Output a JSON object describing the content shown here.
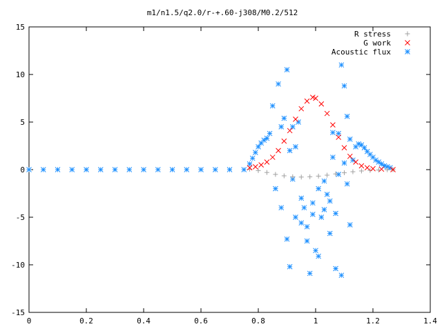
{
  "chart_data": {
    "type": "scatter",
    "title": "m1/n1.5/q2.0/r-+.60-j308/M0.2/512",
    "xlabel": "",
    "ylabel": "",
    "xlim": [
      0,
      1.4
    ],
    "ylim": [
      -15,
      15
    ],
    "x_ticks": [
      "0",
      "0.2",
      "0.4",
      "0.6",
      "0.8",
      "1",
      "1.2",
      "1.4"
    ],
    "y_ticks": [
      "-15",
      "-10",
      "-5",
      "0",
      "5",
      "10",
      "15"
    ],
    "grid": false,
    "legend_position": "top-right",
    "series": [
      {
        "name": "R stress",
        "marker": "plus",
        "color": "#a0a0a0",
        "points": [
          [
            0.77,
            0.05
          ],
          [
            0.8,
            -0.1
          ],
          [
            0.83,
            -0.3
          ],
          [
            0.86,
            -0.5
          ],
          [
            0.89,
            -0.65
          ],
          [
            0.92,
            -0.75
          ],
          [
            0.95,
            -0.78
          ],
          [
            0.98,
            -0.75
          ],
          [
            1.01,
            -0.68
          ],
          [
            1.04,
            -0.58
          ],
          [
            1.07,
            -0.45
          ],
          [
            1.1,
            -0.33
          ],
          [
            1.13,
            -0.22
          ],
          [
            1.16,
            -0.14
          ],
          [
            1.19,
            -0.08
          ],
          [
            1.22,
            -0.04
          ],
          [
            1.25,
            -0.01
          ],
          [
            1.27,
            0
          ]
        ]
      },
      {
        "name": "G work",
        "marker": "cross",
        "color": "#ff0000",
        "points": [
          [
            0.77,
            0.2
          ],
          [
            0.79,
            0.3
          ],
          [
            0.81,
            0.5
          ],
          [
            0.83,
            0.8
          ],
          [
            0.85,
            1.3
          ],
          [
            0.87,
            2.0
          ],
          [
            0.89,
            3.0
          ],
          [
            0.91,
            4.1
          ],
          [
            0.93,
            5.3
          ],
          [
            0.95,
            6.4
          ],
          [
            0.97,
            7.2
          ],
          [
            0.99,
            7.6
          ],
          [
            1.0,
            7.5
          ],
          [
            1.02,
            6.9
          ],
          [
            1.04,
            5.9
          ],
          [
            1.06,
            4.7
          ],
          [
            1.08,
            3.4
          ],
          [
            1.1,
            2.3
          ],
          [
            1.12,
            1.4
          ],
          [
            1.14,
            0.8
          ],
          [
            1.16,
            0.4
          ],
          [
            1.18,
            0.2
          ],
          [
            1.2,
            0.1
          ],
          [
            1.23,
            0.05
          ],
          [
            1.27,
            0
          ]
        ]
      },
      {
        "name": "Acoustic flux",
        "marker": "star",
        "color": "#1e90ff",
        "points": [
          [
            0.0,
            0
          ],
          [
            0.05,
            0
          ],
          [
            0.1,
            0
          ],
          [
            0.15,
            0
          ],
          [
            0.2,
            0
          ],
          [
            0.25,
            0
          ],
          [
            0.3,
            0
          ],
          [
            0.35,
            0
          ],
          [
            0.4,
            0
          ],
          [
            0.45,
            0
          ],
          [
            0.5,
            0
          ],
          [
            0.55,
            0
          ],
          [
            0.6,
            0
          ],
          [
            0.65,
            0
          ],
          [
            0.7,
            0
          ],
          [
            0.75,
            0
          ],
          [
            0.77,
            0.6
          ],
          [
            0.78,
            1.2
          ],
          [
            0.79,
            1.8
          ],
          [
            0.8,
            2.4
          ],
          [
            0.81,
            2.8
          ],
          [
            0.82,
            3.1
          ],
          [
            0.83,
            3.3
          ],
          [
            0.84,
            3.8
          ],
          [
            0.85,
            6.7
          ],
          [
            0.87,
            9.0
          ],
          [
            0.88,
            4.5
          ],
          [
            0.89,
            5.4
          ],
          [
            0.9,
            10.5
          ],
          [
            0.91,
            2.0
          ],
          [
            0.92,
            -1.0
          ],
          [
            0.93,
            2.4
          ],
          [
            0.95,
            -3.0
          ],
          [
            0.96,
            -4.0
          ],
          [
            0.97,
            -7.5
          ],
          [
            0.98,
            -10.9
          ],
          [
            0.99,
            -4.7
          ],
          [
            1.0,
            -8.5
          ],
          [
            1.01,
            -9.1
          ],
          [
            1.02,
            -5.0
          ],
          [
            1.03,
            -4.2
          ],
          [
            1.04,
            -2.6
          ],
          [
            1.05,
            -6.7
          ],
          [
            1.06,
            3.9
          ],
          [
            1.07,
            -10.4
          ],
          [
            1.08,
            3.8
          ],
          [
            1.09,
            11.0
          ],
          [
            1.1,
            8.8
          ],
          [
            1.11,
            5.6
          ],
          [
            1.12,
            3.2
          ],
          [
            1.13,
            1.0
          ],
          [
            1.14,
            2.4
          ],
          [
            1.15,
            2.7
          ],
          [
            1.16,
            2.6
          ],
          [
            1.17,
            2.3
          ],
          [
            1.18,
            1.9
          ],
          [
            1.19,
            1.6
          ],
          [
            1.2,
            1.3
          ],
          [
            1.21,
            1.0
          ],
          [
            1.22,
            0.8
          ],
          [
            1.23,
            0.6
          ],
          [
            1.24,
            0.4
          ],
          [
            1.25,
            0.3
          ],
          [
            1.26,
            0.2
          ],
          [
            0.86,
            -2.0
          ],
          [
            0.88,
            -4.0
          ],
          [
            0.9,
            -7.3
          ],
          [
            0.91,
            -10.2
          ],
          [
            0.93,
            -5.0
          ],
          [
            0.95,
            -5.6
          ],
          [
            0.97,
            -6.0
          ],
          [
            0.99,
            -3.5
          ],
          [
            1.01,
            -2.0
          ],
          [
            1.03,
            -1.2
          ],
          [
            1.05,
            -3.3
          ],
          [
            1.07,
            -4.6
          ],
          [
            1.09,
            -11.1
          ],
          [
            1.11,
            -1.5
          ],
          [
            1.12,
            -5.8
          ],
          [
            0.92,
            4.5
          ],
          [
            0.94,
            5.0
          ],
          [
            1.06,
            1.3
          ],
          [
            1.08,
            -0.5
          ],
          [
            1.1,
            0.7
          ]
        ]
      }
    ]
  }
}
